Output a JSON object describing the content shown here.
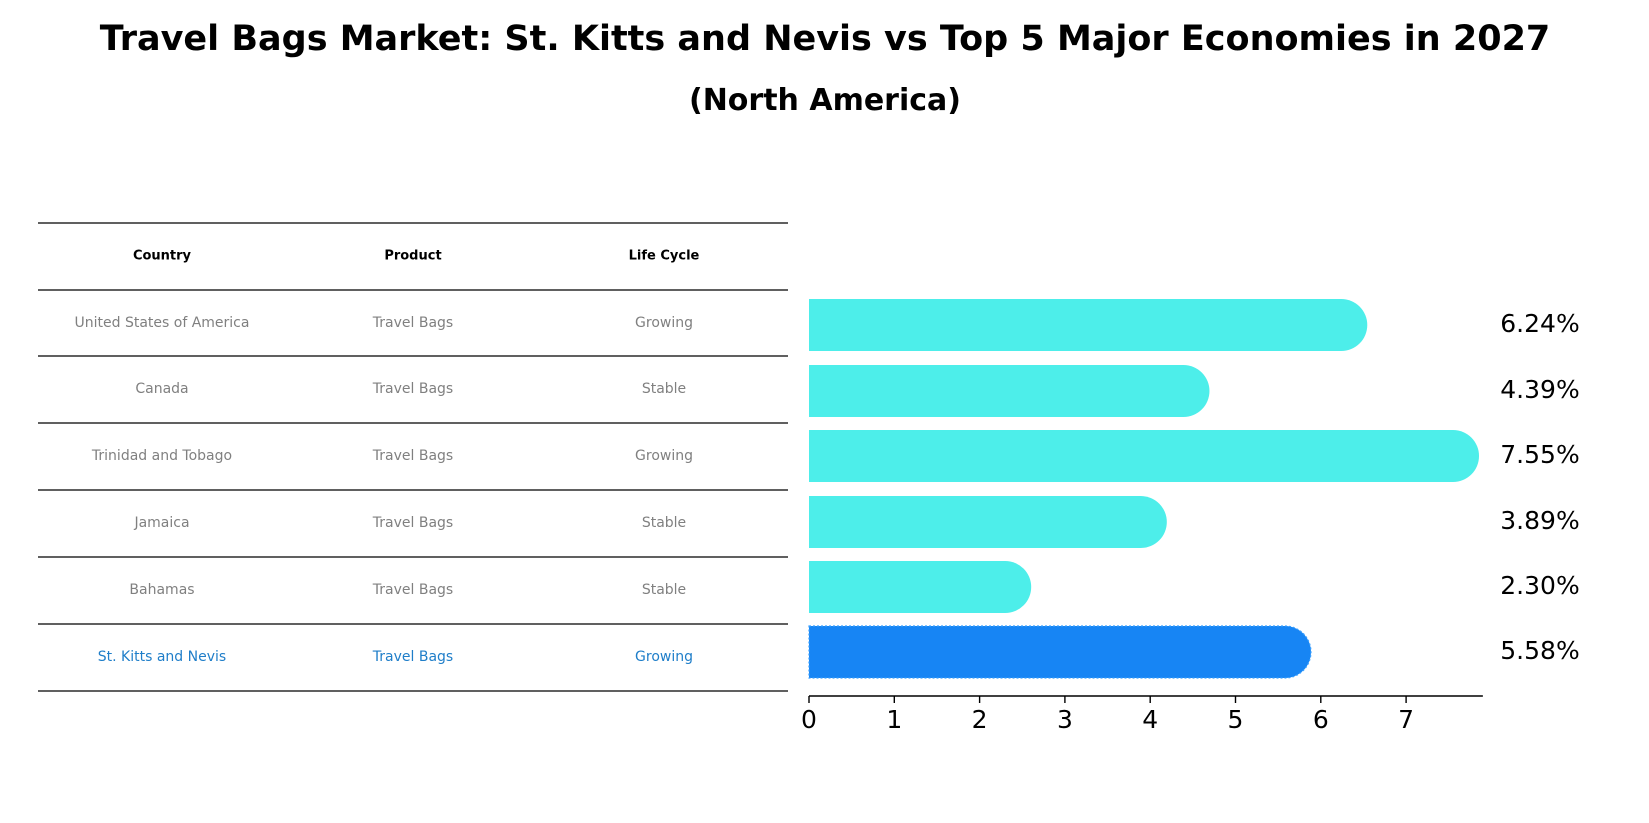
{
  "colors": {
    "bar": "#4DEEEA",
    "highlight_bar": "#1785F4",
    "row_text": "#808080",
    "highlight_text": "#1F7EC9",
    "rule": "#000000"
  },
  "chart_data": {
    "type": "bar",
    "orientation": "horizontal",
    "title": "Travel Bags Market: St. Kitts and Nevis vs Top 5 Major Economies in 2027",
    "subtitle": "(North America)",
    "table": {
      "columns": [
        "Country",
        "Product",
        "Life Cycle"
      ],
      "rows": [
        {
          "country": "United States of America",
          "product": "Travel Bags",
          "life_cycle": "Growing",
          "highlight": false
        },
        {
          "country": "Canada",
          "product": "Travel Bags",
          "life_cycle": "Stable",
          "highlight": false
        },
        {
          "country": "Trinidad and Tobago",
          "product": "Travel Bags",
          "life_cycle": "Growing",
          "highlight": false
        },
        {
          "country": "Jamaica",
          "product": "Travel Bags",
          "life_cycle": "Stable",
          "highlight": false
        },
        {
          "country": "Bahamas",
          "product": "Travel Bags",
          "life_cycle": "Stable",
          "highlight": false
        },
        {
          "country": "St. Kitts and Nevis",
          "product": "Travel Bags",
          "life_cycle": "Growing",
          "highlight": true
        }
      ]
    },
    "categories": [
      "United States of America",
      "Canada",
      "Trinidad and Tobago",
      "Jamaica",
      "Bahamas",
      "St. Kitts and Nevis"
    ],
    "values": [
      6.24,
      4.39,
      7.55,
      3.89,
      2.3,
      5.58
    ],
    "value_labels": [
      "6.24%",
      "4.39%",
      "7.55%",
      "3.89%",
      "2.30%",
      "5.58%"
    ],
    "highlight_index": 5,
    "xlim": [
      0,
      7.9
    ],
    "xticks": [
      0,
      1,
      2,
      3,
      4,
      5,
      6,
      7
    ],
    "xtick_labels": [
      "0",
      "1",
      "2",
      "3",
      "4",
      "5",
      "6",
      "7"
    ],
    "xlabel": "",
    "ylabel": "",
    "grid": false,
    "legend": "none"
  }
}
